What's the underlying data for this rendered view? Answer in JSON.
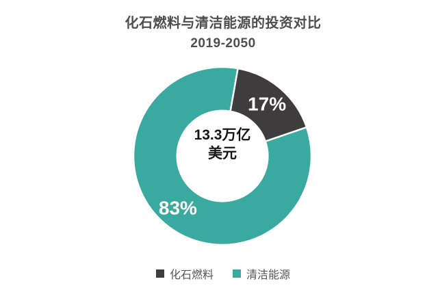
{
  "header": {
    "title": "化石燃料与清洁能源的投资对比",
    "subtitle": "2019-2050"
  },
  "donut": {
    "center_line1": "13.3万亿",
    "center_line2": "美元"
  },
  "chart_data": {
    "type": "pie",
    "title": "化石燃料与清洁能源的投资对比",
    "subtitle": "2019-2050",
    "categories": [
      "化石燃料",
      "清洁能源"
    ],
    "values": [
      17,
      83
    ],
    "value_labels": [
      "17%",
      "83%"
    ],
    "colors": [
      "#3E3C3D",
      "#3AA9A0"
    ],
    "donut": true,
    "inner_radius_ratio": 0.51,
    "start_angle_deg": 10,
    "center_text": "13.3万亿美元",
    "legend_position": "bottom",
    "legend": [
      "化石燃料",
      "清洁能源"
    ]
  }
}
